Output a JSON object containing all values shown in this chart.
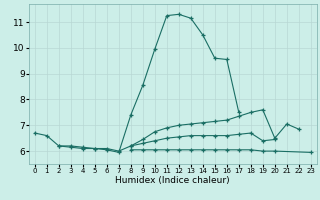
{
  "xlabel": "Humidex (Indice chaleur)",
  "xlim": [
    -0.5,
    23.5
  ],
  "ylim": [
    5.5,
    11.7
  ],
  "xticks": [
    0,
    1,
    2,
    3,
    4,
    5,
    6,
    7,
    8,
    9,
    10,
    11,
    12,
    13,
    14,
    15,
    16,
    17,
    18,
    19,
    20,
    21,
    22,
    23
  ],
  "yticks": [
    6,
    7,
    8,
    9,
    10,
    11
  ],
  "bg_color": "#cceee8",
  "grid_color": "#b8d8d4",
  "line_color": "#1a6e64",
  "lines": [
    {
      "x": [
        0,
        1,
        2,
        3,
        4,
        5,
        6,
        7,
        8,
        9,
        10,
        11,
        12,
        13,
        14,
        15,
        16,
        17
      ],
      "y": [
        6.7,
        6.6,
        6.2,
        6.15,
        6.1,
        6.1,
        6.05,
        5.95,
        7.4,
        8.55,
        9.95,
        11.25,
        11.3,
        11.15,
        10.5,
        9.6,
        9.55,
        7.5
      ]
    },
    {
      "x": [
        8,
        9,
        10,
        11,
        12,
        13,
        14,
        15,
        16,
        17,
        18,
        19,
        20,
        21,
        22
      ],
      "y": [
        6.2,
        6.45,
        6.75,
        6.9,
        7.0,
        7.05,
        7.1,
        7.15,
        7.2,
        7.35,
        7.5,
        7.6,
        6.5,
        7.05,
        6.85
      ]
    },
    {
      "x": [
        2,
        3,
        4,
        5,
        6,
        7,
        8,
        9,
        10,
        11,
        12,
        13,
        14,
        15,
        16,
        17,
        18,
        19,
        20
      ],
      "y": [
        6.2,
        6.2,
        6.15,
        6.1,
        6.1,
        6.0,
        6.2,
        6.3,
        6.4,
        6.5,
        6.55,
        6.6,
        6.6,
        6.6,
        6.6,
        6.65,
        6.7,
        6.4,
        6.45
      ]
    },
    {
      "x": [
        8,
        9,
        10,
        11,
        12,
        13,
        14,
        15,
        16,
        17,
        18,
        19,
        20,
        23
      ],
      "y": [
        6.05,
        6.05,
        6.05,
        6.05,
        6.05,
        6.05,
        6.05,
        6.05,
        6.05,
        6.05,
        6.05,
        6.0,
        6.0,
        5.95
      ]
    }
  ]
}
